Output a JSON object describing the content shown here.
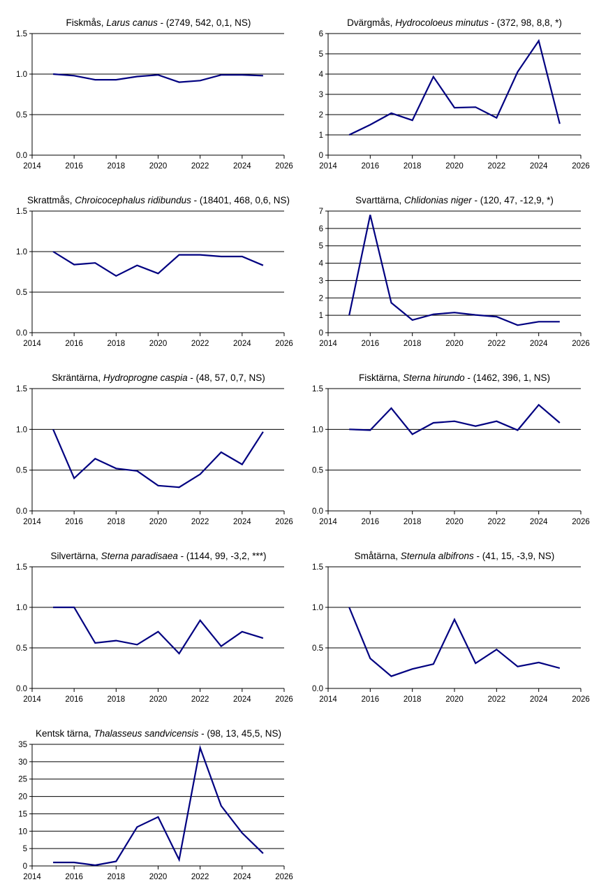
{
  "colors": {
    "series": "#000080",
    "grid": "#000000"
  },
  "x_ticks": [
    "2014",
    "2016",
    "2018",
    "2020",
    "2022",
    "2024",
    "2026"
  ],
  "chart_data": [
    {
      "type": "line",
      "title_prefix": "Fiskmås, ",
      "title_species": "Larus canus",
      "title_suffix": " - (2749, 542, 0,1, NS)",
      "xlim": [
        2014,
        2026
      ],
      "ylim": [
        0,
        1.5
      ],
      "y_ticks": [
        "0.0",
        "0.5",
        "1.0",
        "1.5"
      ],
      "x": [
        2015,
        2016,
        2017,
        2018,
        2019,
        2020,
        2021,
        2022,
        2023,
        2024,
        2025
      ],
      "values": [
        1.0,
        0.98,
        0.93,
        0.93,
        0.97,
        0.99,
        0.9,
        0.92,
        0.99,
        0.99,
        0.98
      ],
      "grid": "horizontal"
    },
    {
      "type": "line",
      "title_prefix": "Dvärgmås, ",
      "title_species": "Hydrocoloeus minutus",
      "title_suffix": " - (372, 98, 8,8, *)",
      "xlim": [
        2014,
        2026
      ],
      "ylim": [
        0,
        6
      ],
      "y_ticks": [
        "0",
        "1",
        "2",
        "3",
        "4",
        "5",
        "6"
      ],
      "x": [
        2015,
        2016,
        2017,
        2018,
        2019,
        2020,
        2021,
        2022,
        2023,
        2024,
        2025
      ],
      "values": [
        1.0,
        1.5,
        2.07,
        1.72,
        3.87,
        2.34,
        2.37,
        1.84,
        4.11,
        5.64,
        1.55
      ],
      "grid": "horizontal"
    },
    {
      "type": "line",
      "title_prefix": "Skrattmås, ",
      "title_species": "Chroicocephalus ridibundus",
      "title_suffix": " - (18401, 468, 0,6, NS)",
      "xlim": [
        2014,
        2026
      ],
      "ylim": [
        0,
        1.5
      ],
      "y_ticks": [
        "0.0",
        "0.5",
        "1.0",
        "1.5"
      ],
      "x": [
        2015,
        2016,
        2017,
        2018,
        2019,
        2020,
        2021,
        2022,
        2023,
        2024,
        2025
      ],
      "values": [
        1.0,
        0.84,
        0.86,
        0.7,
        0.83,
        0.73,
        0.96,
        0.96,
        0.94,
        0.94,
        0.83
      ],
      "grid": "horizontal"
    },
    {
      "type": "line",
      "title_prefix": "Svarttärna, ",
      "title_species": "Chlidonias niger",
      "title_suffix": " - (120, 47, -12,9, *)",
      "xlim": [
        2014,
        2026
      ],
      "ylim": [
        0,
        7
      ],
      "y_ticks": [
        "0",
        "1",
        "2",
        "3",
        "4",
        "5",
        "6",
        "7"
      ],
      "x": [
        2015,
        2016,
        2017,
        2018,
        2019,
        2020,
        2021,
        2022,
        2023,
        2024,
        2025
      ],
      "values": [
        1.0,
        6.78,
        1.72,
        0.73,
        1.06,
        1.16,
        1.02,
        0.92,
        0.43,
        0.63,
        0.63
      ],
      "grid": "horizontal"
    },
    {
      "type": "line",
      "title_prefix": "Skräntärna, ",
      "title_species": "Hydroprogne caspia",
      "title_suffix": " - (48, 57, 0,7, NS)",
      "xlim": [
        2014,
        2026
      ],
      "ylim": [
        0,
        1.5
      ],
      "y_ticks": [
        "0.0",
        "0.5",
        "1.0",
        "1.5"
      ],
      "x": [
        2015,
        2016,
        2017,
        2018,
        2019,
        2020,
        2021,
        2022,
        2023,
        2024,
        2025
      ],
      "values": [
        1.0,
        0.4,
        0.64,
        0.52,
        0.49,
        0.31,
        0.29,
        0.45,
        0.72,
        0.57,
        0.97
      ],
      "grid": "horizontal"
    },
    {
      "type": "line",
      "title_prefix": "Fisktärna, ",
      "title_species": "Sterna hirundo",
      "title_suffix": " - (1462, 396, 1, NS)",
      "xlim": [
        2014,
        2026
      ],
      "ylim": [
        0,
        1.5
      ],
      "y_ticks": [
        "0.0",
        "0.5",
        "1.0",
        "1.5"
      ],
      "x": [
        2015,
        2016,
        2017,
        2018,
        2019,
        2020,
        2021,
        2022,
        2023,
        2024,
        2025
      ],
      "values": [
        1.0,
        0.99,
        1.26,
        0.94,
        1.08,
        1.1,
        1.04,
        1.1,
        0.99,
        1.3,
        1.08
      ],
      "grid": "horizontal"
    },
    {
      "type": "line",
      "title_prefix": "Silvertärna, ",
      "title_species": "Sterna paradisaea",
      "title_suffix": " - (1144, 99, -3,2, ***)",
      "xlim": [
        2014,
        2026
      ],
      "ylim": [
        0,
        1.5
      ],
      "y_ticks": [
        "0.0",
        "0.5",
        "1.0",
        "1.5"
      ],
      "x": [
        2015,
        2016,
        2017,
        2018,
        2019,
        2020,
        2021,
        2022,
        2023,
        2024,
        2025
      ],
      "values": [
        1.0,
        1.0,
        0.56,
        0.59,
        0.54,
        0.7,
        0.43,
        0.84,
        0.52,
        0.7,
        0.62
      ],
      "grid": "horizontal"
    },
    {
      "type": "line",
      "title_prefix": "Småtärna, ",
      "title_species": "Sternula albifrons",
      "title_suffix": " - (41, 15, -3,9, NS)",
      "xlim": [
        2014,
        2026
      ],
      "ylim": [
        0,
        1.5
      ],
      "y_ticks": [
        "0.0",
        "0.5",
        "1.0",
        "1.5"
      ],
      "x": [
        2015,
        2016,
        2017,
        2018,
        2019,
        2020,
        2021,
        2022,
        2023,
        2024,
        2025
      ],
      "values": [
        1.0,
        0.37,
        0.15,
        0.24,
        0.3,
        0.85,
        0.31,
        0.48,
        0.27,
        0.32,
        0.25
      ],
      "grid": "horizontal"
    },
    {
      "type": "line",
      "title_prefix": "Kentsk tärna, ",
      "title_species": "Thalasseus sandvicensis",
      "title_suffix": " - (98, 13, 45,5, NS)",
      "xlim": [
        2014,
        2026
      ],
      "ylim": [
        0,
        35
      ],
      "y_ticks": [
        "0",
        "5",
        "10",
        "15",
        "20",
        "25",
        "30",
        "35"
      ],
      "x": [
        2015,
        2016,
        2017,
        2018,
        2019,
        2020,
        2021,
        2022,
        2023,
        2024,
        2025
      ],
      "values": [
        1.0,
        1.0,
        0.2,
        1.3,
        11.2,
        14.1,
        1.8,
        34.0,
        17.3,
        9.5,
        3.6
      ],
      "grid": "horizontal"
    }
  ]
}
